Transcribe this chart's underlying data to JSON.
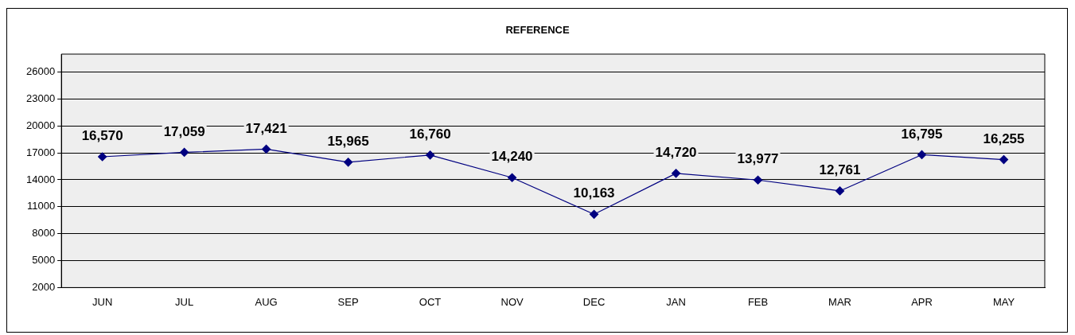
{
  "chart_data": {
    "type": "line",
    "title": "REFERENCE",
    "categories": [
      "JUN",
      "JUL",
      "AUG",
      "SEP",
      "OCT",
      "NOV",
      "DEC",
      "JAN",
      "FEB",
      "MAR",
      "APR",
      "MAY"
    ],
    "series": [
      {
        "color": "#000080",
        "values": [
          16570,
          17059,
          17421,
          15965,
          16760,
          14240,
          10163,
          14720,
          13977,
          12761,
          16795,
          16255
        ],
        "value_labels": [
          "16,570",
          "17,059",
          "17,421",
          "15,965",
          "16,760",
          "14,240",
          "10,163",
          "14,720",
          "13,977",
          "12,761",
          "16,795",
          "16,255"
        ]
      }
    ],
    "ylim": [
      2000,
      28000
    ],
    "yticks": [
      2000,
      5000,
      8000,
      11000,
      14000,
      17000,
      20000,
      23000,
      26000
    ],
    "grid": "y",
    "legend": false,
    "marker": "diamond",
    "line_style": "solid"
  }
}
